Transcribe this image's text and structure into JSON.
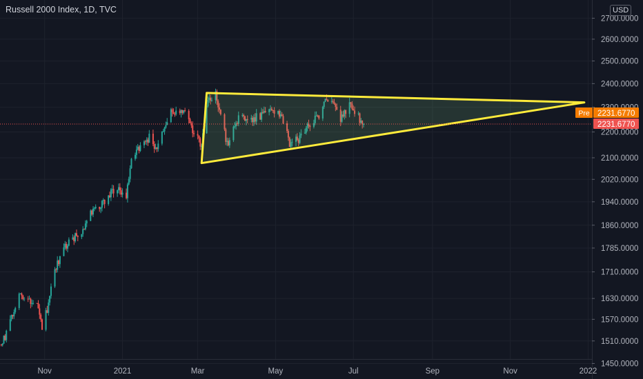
{
  "title": "Russell 2000 Index, 1D, TVC",
  "currency_label": "USD",
  "chart_data": {
    "type": "candlestick",
    "title": "Russell 2000 Index, 1D, TVC",
    "y_scale": "log",
    "y_ticks": [
      "2700.0000",
      "2600.0000",
      "2500.0000",
      "2400.0000",
      "2300.0000",
      "2200.0000",
      "2100.0000",
      "2020.0000",
      "1940.0000",
      "1860.0000",
      "1785.0000",
      "1710.0000",
      "1630.0000",
      "1570.0000",
      "1510.0000",
      "1450.0000"
    ],
    "x_ticks": [
      "Nov",
      "2021",
      "Mar",
      "May",
      "Jul",
      "Sep",
      "Nov",
      "2022"
    ],
    "x_range": [
      "2020-09-27",
      "2022-01-04"
    ],
    "y_range": [
      1410,
      2790
    ],
    "pre_label": "Pre",
    "pre_price": "2231.6770",
    "last_price": "2231.6770",
    "colors": {
      "up": "#26a69a",
      "down": "#ef5350",
      "pattern": "#ffeb3b",
      "pre": "#f57c00"
    },
    "pattern": {
      "type": "triangle",
      "points": [
        {
          "date": "2021-03-08",
          "price": 2360
        },
        {
          "date": "2021-03-04",
          "price": 2080
        },
        {
          "date": "2021-12-29",
          "price": 2320
        }
      ]
    },
    "anchors": [
      {
        "date": "2020-09-28",
        "price": 1500
      },
      {
        "date": "2020-10-02",
        "price": 1530
      },
      {
        "date": "2020-10-08",
        "price": 1600
      },
      {
        "date": "2020-10-13",
        "price": 1640
      },
      {
        "date": "2020-10-20",
        "price": 1630
      },
      {
        "date": "2020-10-27",
        "price": 1600
      },
      {
        "date": "2020-10-30",
        "price": 1540
      },
      {
        "date": "2020-11-03",
        "price": 1600
      },
      {
        "date": "2020-11-09",
        "price": 1720
      },
      {
        "date": "2020-11-16",
        "price": 1780
      },
      {
        "date": "2020-11-23",
        "price": 1820
      },
      {
        "date": "2020-11-30",
        "price": 1830
      },
      {
        "date": "2020-12-07",
        "price": 1900
      },
      {
        "date": "2020-12-14",
        "price": 1930
      },
      {
        "date": "2020-12-21",
        "price": 1960
      },
      {
        "date": "2020-12-28",
        "price": 1990
      },
      {
        "date": "2021-01-04",
        "price": 1960
      },
      {
        "date": "2021-01-08",
        "price": 2090
      },
      {
        "date": "2021-01-15",
        "price": 2140
      },
      {
        "date": "2021-01-22",
        "price": 2180
      },
      {
        "date": "2021-01-27",
        "price": 2130
      },
      {
        "date": "2021-02-01",
        "price": 2200
      },
      {
        "date": "2021-02-08",
        "price": 2280
      },
      {
        "date": "2021-02-12",
        "price": 2290
      },
      {
        "date": "2021-02-19",
        "price": 2270
      },
      {
        "date": "2021-02-25",
        "price": 2200
      },
      {
        "date": "2021-03-04",
        "price": 2150
      },
      {
        "date": "2021-03-09",
        "price": 2330
      },
      {
        "date": "2021-03-15",
        "price": 2350
      },
      {
        "date": "2021-03-19",
        "price": 2270
      },
      {
        "date": "2021-03-24",
        "price": 2150
      },
      {
        "date": "2021-03-31",
        "price": 2250
      },
      {
        "date": "2021-04-08",
        "price": 2250
      },
      {
        "date": "2021-04-16",
        "price": 2260
      },
      {
        "date": "2021-04-23",
        "price": 2270
      },
      {
        "date": "2021-04-29",
        "price": 2290
      },
      {
        "date": "2021-05-06",
        "price": 2260
      },
      {
        "date": "2021-05-12",
        "price": 2150
      },
      {
        "date": "2021-05-19",
        "price": 2170
      },
      {
        "date": "2021-05-27",
        "price": 2230
      },
      {
        "date": "2021-06-04",
        "price": 2270
      },
      {
        "date": "2021-06-10",
        "price": 2330
      },
      {
        "date": "2021-06-17",
        "price": 2300
      },
      {
        "date": "2021-06-21",
        "price": 2250
      },
      {
        "date": "2021-06-28",
        "price": 2310
      },
      {
        "date": "2021-07-02",
        "price": 2280
      },
      {
        "date": "2021-07-08",
        "price": 2240
      },
      {
        "date": "2021-07-09",
        "price": 2231.68
      }
    ]
  }
}
